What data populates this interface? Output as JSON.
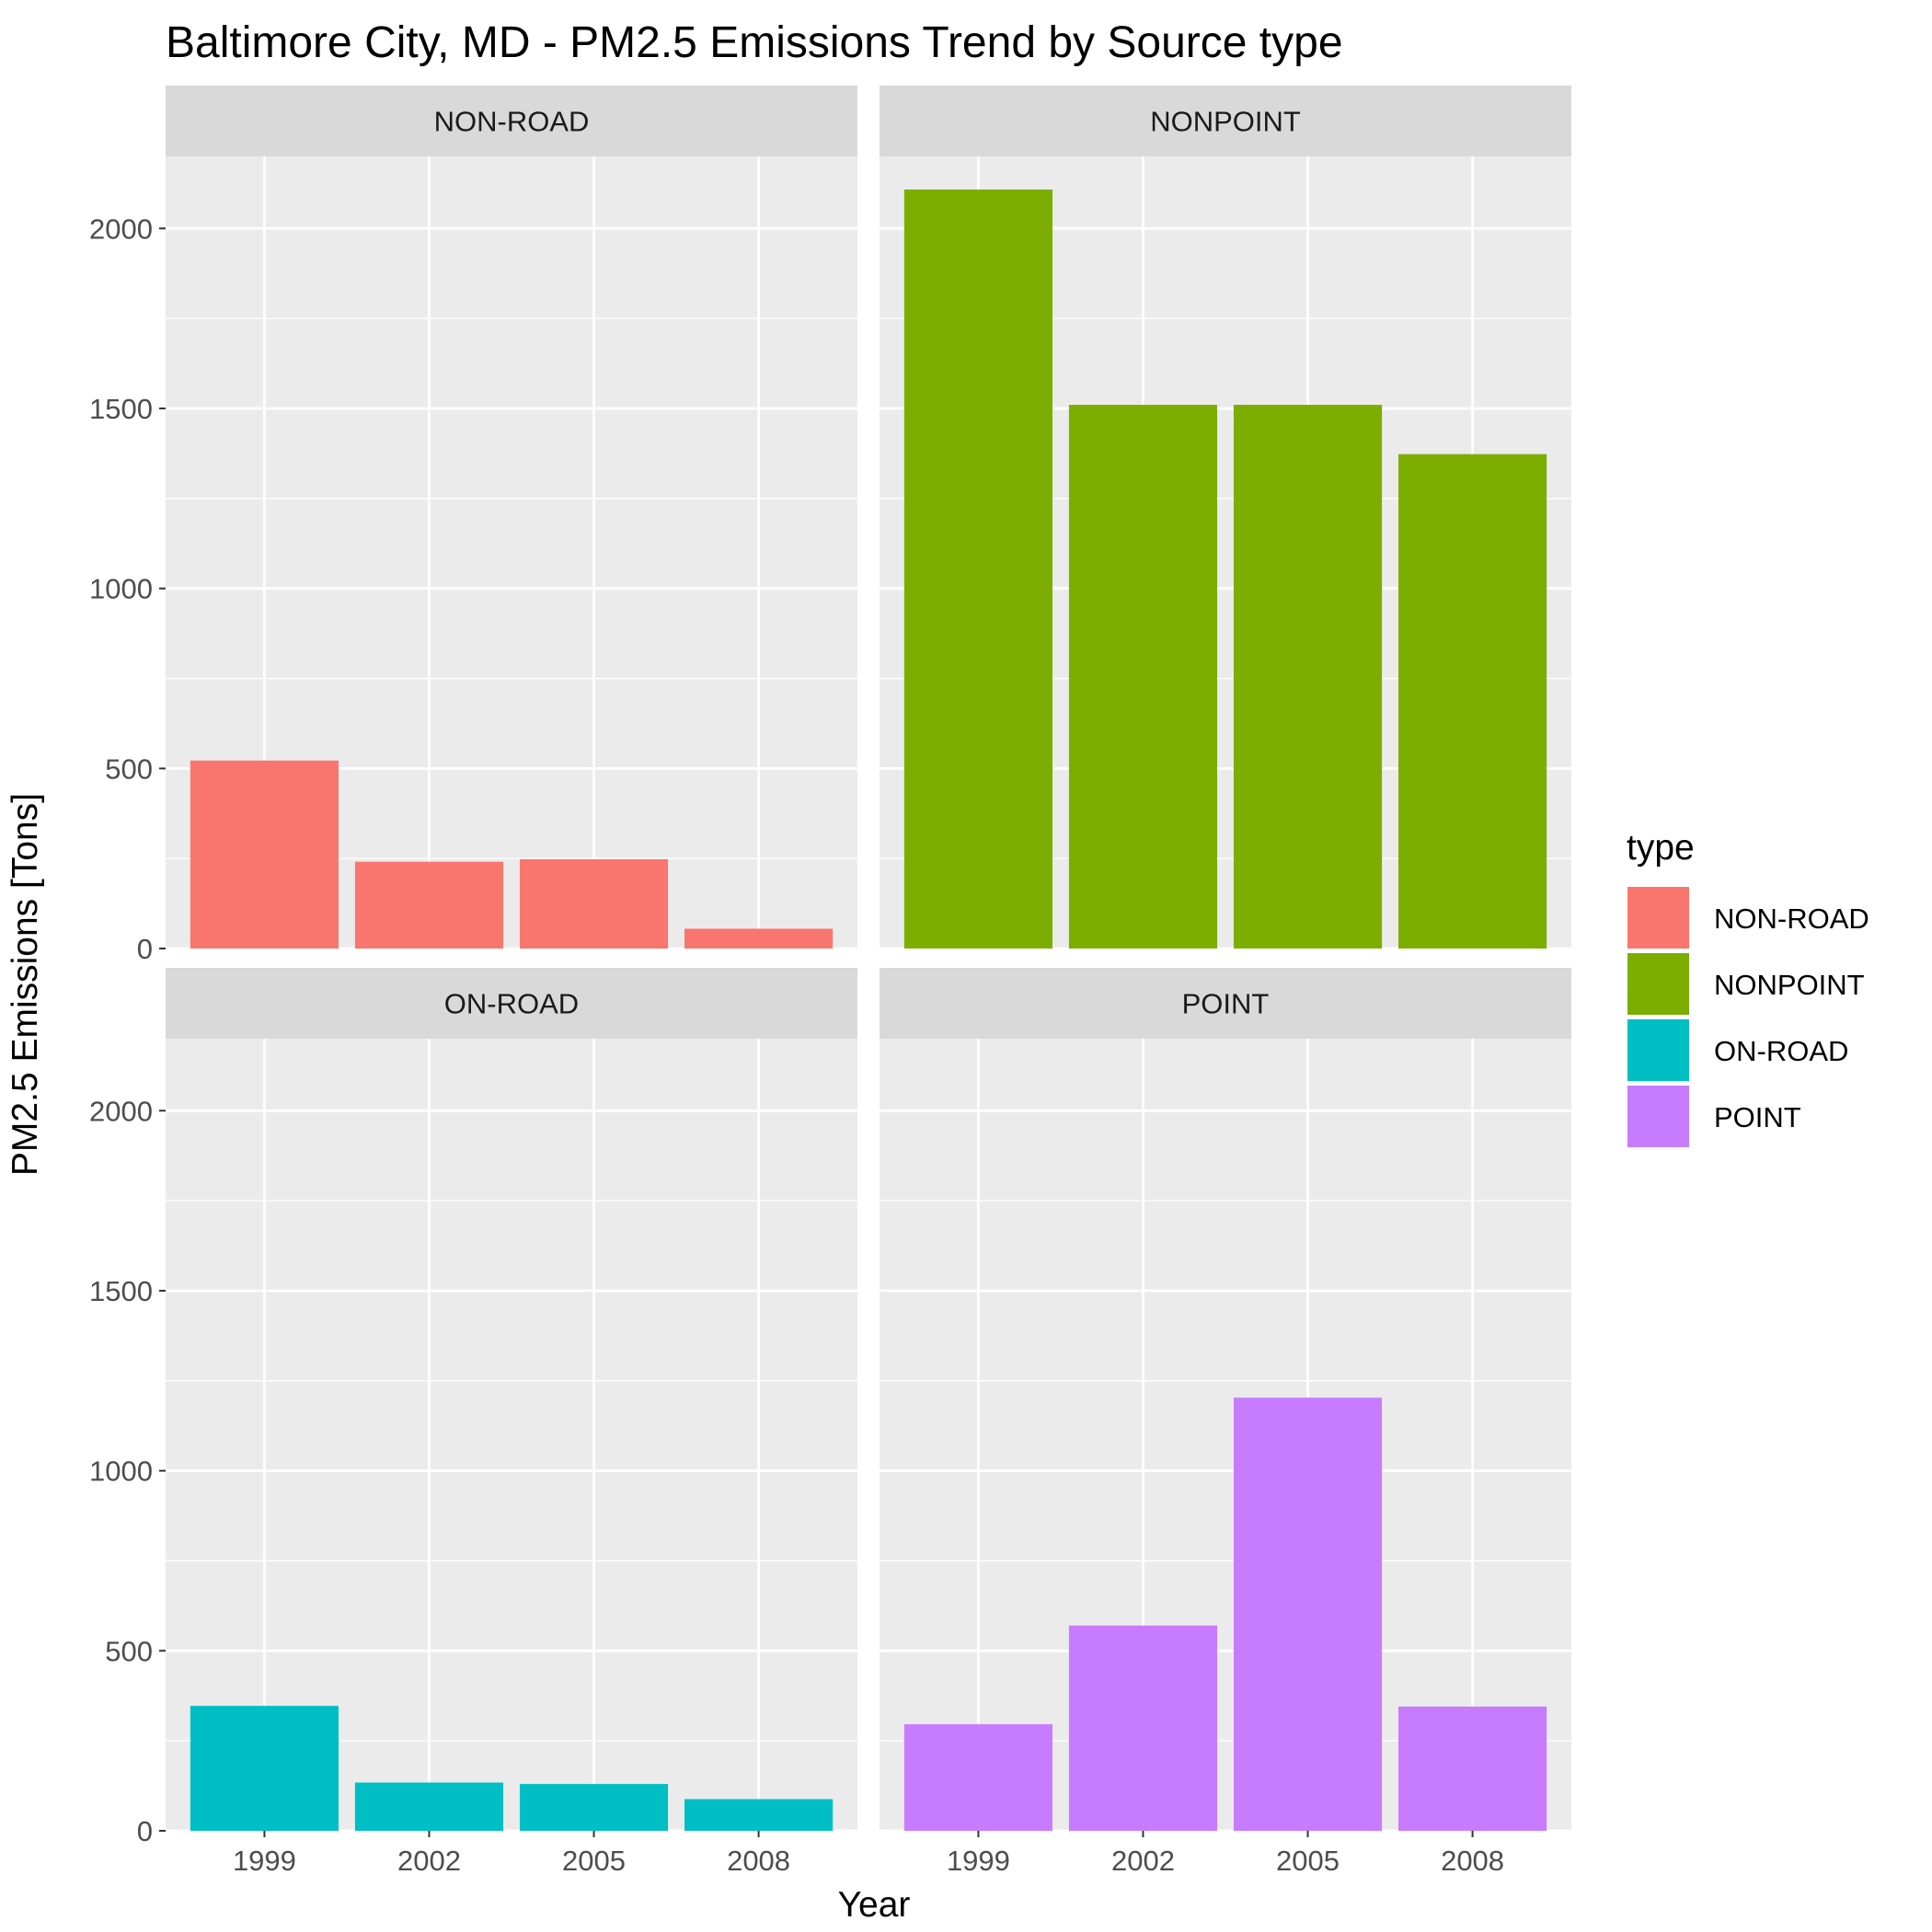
{
  "chart_data": {
    "type": "bar",
    "title": "Baltimore City, MD - PM2.5 Emissions Trend by Source type",
    "xlabel": "Year",
    "ylabel": "PM2.5 Emissions [Tons]",
    "categories": [
      "1999",
      "2002",
      "2005",
      "2008"
    ],
    "ylim": [
      0,
      2200
    ],
    "yticks": [
      0,
      500,
      1000,
      1500,
      2000
    ],
    "grid": true,
    "facet_layout": "2x2",
    "legend": {
      "title": "type",
      "position": "right",
      "entries": [
        "NON-ROAD",
        "NONPOINT",
        "ON-ROAD",
        "POINT"
      ]
    },
    "series": [
      {
        "name": "NON-ROAD",
        "color": "#F8766D",
        "values": [
          522,
          241,
          248,
          55
        ]
      },
      {
        "name": "NONPOINT",
        "color": "#7CAE00",
        "values": [
          2108,
          1510,
          1510,
          1373
        ]
      },
      {
        "name": "ON-ROAD",
        "color": "#00BFC4",
        "values": [
          347,
          134,
          130,
          88
        ]
      },
      {
        "name": "POINT",
        "color": "#C77CFF",
        "values": [
          296,
          570,
          1203,
          345
        ]
      }
    ]
  }
}
